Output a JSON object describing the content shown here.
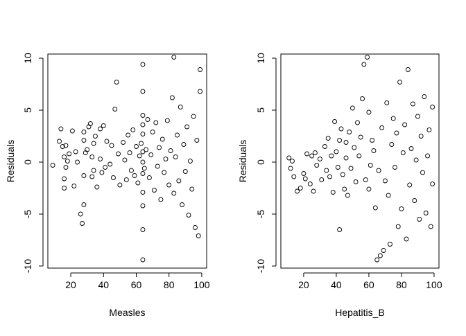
{
  "chart_data": [
    {
      "type": "scatter",
      "title": "",
      "xlabel": "Measles",
      "ylabel": "Residuals",
      "xlim": [
        6,
        103
      ],
      "ylim": [
        -10.2,
        10.4
      ],
      "xticks": [
        20,
        40,
        60,
        80,
        100
      ],
      "yticks": [
        -10,
        -5,
        0,
        5,
        10
      ],
      "xtick_labels": [
        "20",
        "40",
        "60",
        "80",
        "100"
      ],
      "ytick_labels": [
        "-10",
        "-5",
        "0",
        "5",
        "10"
      ],
      "grid": false,
      "marker": "open-circle",
      "series": [
        {
          "x": [
            9,
            13,
            14,
            15,
            16,
            16,
            16,
            17,
            17,
            18,
            19,
            21,
            22,
            23,
            24,
            26,
            27,
            28,
            28,
            28,
            28,
            29,
            30,
            31,
            32,
            33,
            33,
            34,
            34,
            35,
            36,
            38,
            38,
            39,
            40,
            41,
            42,
            44,
            45,
            46,
            47,
            48,
            49,
            50,
            52,
            53,
            54,
            55,
            56,
            57,
            58,
            59,
            60,
            61,
            62,
            63,
            64,
            64,
            64,
            64,
            64,
            64,
            64,
            64,
            64,
            64,
            64,
            64,
            65,
            66,
            67,
            68,
            69,
            70,
            71,
            72,
            73,
            74,
            75,
            76,
            77,
            78,
            79,
            80,
            81,
            82,
            83,
            83,
            84,
            85,
            86,
            87,
            88,
            89,
            90,
            91,
            92,
            93,
            94,
            95,
            96,
            97,
            98,
            99,
            99
          ],
          "y": [
            -0.3,
            2.0,
            3.2,
            1.5,
            -1.6,
            -2.5,
            0.5,
            1.6,
            -0.5,
            0.1,
            0.8,
            3.0,
            -2.3,
            1.0,
            0.0,
            -5.0,
            -5.9,
            -4.1,
            -1.3,
            2.1,
            2.9,
            0.9,
            1.2,
            3.4,
            3.7,
            -1.4,
            0.5,
            1.8,
            -0.8,
            2.5,
            -2.4,
            3.2,
            0.3,
            -1.0,
            3.5,
            -0.5,
            2.0,
            -0.2,
            1.6,
            -1.5,
            5.1,
            7.7,
            0.8,
            -2.2,
            1.9,
            0.2,
            -1.7,
            2.6,
            0.9,
            -0.8,
            3.1,
            -1.3,
            1.5,
            -2.0,
            0.6,
            1.8,
            9.4,
            -9.4,
            6.8,
            -6.5,
            4.5,
            -4.2,
            2.7,
            -2.9,
            1.0,
            -1.1,
            0.0,
            3.6,
            -0.6,
            1.2,
            4.1,
            -1.5,
            0.7,
            2.9,
            -2.7,
            3.8,
            -0.4,
            1.4,
            -3.6,
            2.2,
            -1.0,
            0.3,
            4.0,
            -2.2,
            1.1,
            6.2,
            10.1,
            -3.0,
            0.5,
            2.6,
            -1.8,
            5.3,
            -4.1,
            1.7,
            -0.9,
            3.4,
            -5.1,
            0.1,
            -2.6,
            4.4,
            -6.3,
            2.1,
            -7.1,
            8.9,
            6.8
          ]
        }
      ]
    },
    {
      "type": "scatter",
      "title": "",
      "xlabel": "Hepatitis_B",
      "ylabel": "Residuals",
      "xlim": [
        6,
        103
      ],
      "ylim": [
        -10.2,
        10.4
      ],
      "xticks": [
        20,
        40,
        60,
        80,
        100
      ],
      "yticks": [
        -10,
        -5,
        0,
        5,
        10
      ],
      "xtick_labels": [
        "20",
        "40",
        "60",
        "80",
        "100"
      ],
      "ytick_labels": [
        "-10",
        "-5",
        "0",
        "5",
        "10"
      ],
      "grid": false,
      "marker": "open-circle",
      "series": [
        {
          "x": [
            11,
            12,
            13,
            14,
            16,
            18,
            20,
            21,
            22,
            24,
            25,
            26,
            27,
            28,
            30,
            31,
            33,
            34,
            35,
            36,
            37,
            38,
            39,
            40,
            41,
            42,
            42,
            43,
            44,
            45,
            46,
            46,
            47,
            48,
            49,
            50,
            51,
            52,
            53,
            54,
            55,
            56,
            57,
            58,
            59,
            60,
            60,
            61,
            62,
            63,
            64,
            65,
            66,
            67,
            68,
            69,
            70,
            71,
            72,
            73,
            74,
            75,
            76,
            77,
            78,
            79,
            80,
            81,
            82,
            83,
            84,
            85,
            86,
            87,
            88,
            89,
            90,
            91,
            92,
            93,
            94,
            95,
            96,
            97,
            98,
            99,
            99
          ],
          "y": [
            0.4,
            -0.6,
            0.1,
            -1.4,
            -2.8,
            -2.5,
            -1.1,
            -1.6,
            0.8,
            -2.1,
            0.6,
            -2.8,
            0.9,
            -0.3,
            0.3,
            -1.7,
            1.5,
            -0.8,
            2.3,
            -1.4,
            0.6,
            -2.9,
            3.9,
            1.0,
            -0.5,
            -6.5,
            2.1,
            3.2,
            -1.2,
            -2.6,
            0.4,
            1.9,
            -3.2,
            2.9,
            -0.6,
            5.2,
            1.4,
            -1.9,
            3.8,
            0.6,
            2.4,
            6.1,
            9.4,
            -1.7,
            10.1,
            4.8,
            -2.6,
            -0.3,
            2.1,
            1.1,
            -4.4,
            -9.4,
            -0.8,
            -9.0,
            3.3,
            -8.5,
            -1.8,
            5.7,
            -3.2,
            -7.9,
            1.7,
            4.2,
            -0.5,
            2.8,
            -6.2,
            7.7,
            -4.5,
            0.9,
            3.6,
            -7.4,
            8.9,
            -2.2,
            1.3,
            5.6,
            -3.7,
            0.2,
            4.4,
            -5.5,
            2.5,
            -1.0,
            6.3,
            -4.9,
            0.6,
            3.1,
            -6.2,
            5.3,
            -2.1
          ]
        }
      ]
    }
  ]
}
